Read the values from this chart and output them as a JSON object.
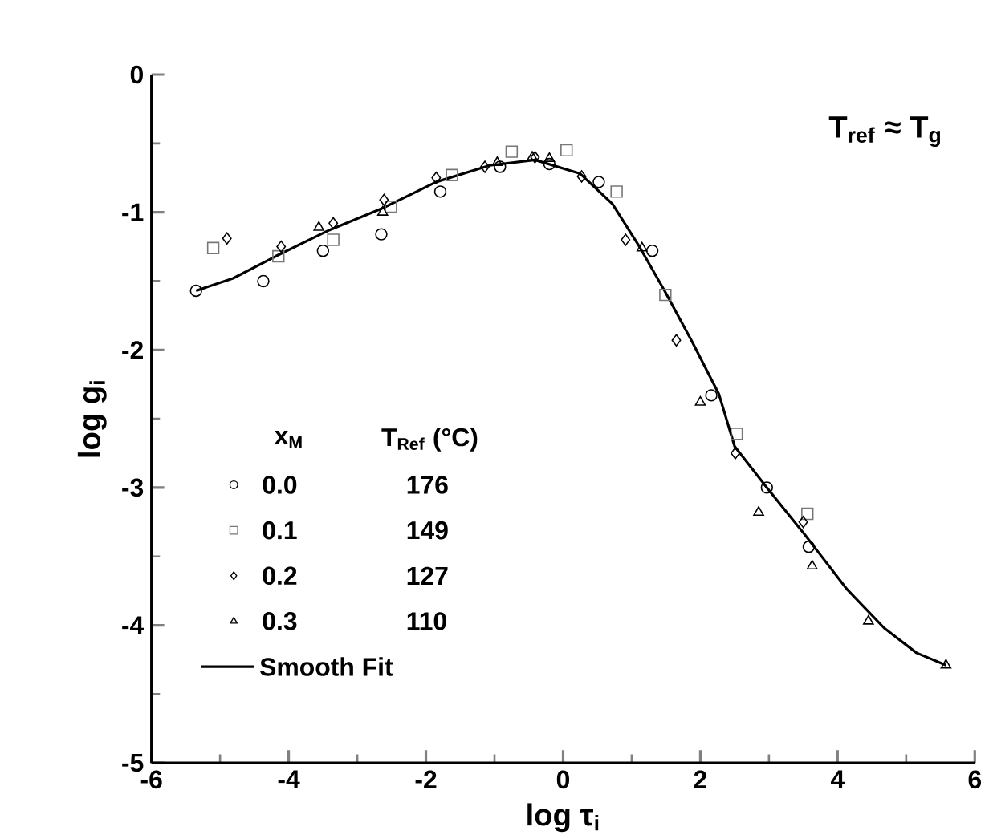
{
  "chart_data": {
    "type": "scatter",
    "xlabel": "log τ$_{i}$",
    "ylabel": "log g$_{i}$",
    "xlim": [
      -6,
      6
    ],
    "ylim": [
      -5,
      0
    ],
    "xticks": [
      -6,
      -4,
      -2,
      0,
      2,
      4,
      6
    ],
    "yticks": [
      -5,
      -4,
      -3,
      -2,
      -1,
      0
    ],
    "legend": "bottom left",
    "legend_title": "x$_{M}$",
    "annotations": [
      "T$_{ref}$ ≈ T$_{g}$",
      "T$_{Ref}$ (°C)",
      "176",
      "149",
      "127",
      "110"
    ],
    "series": [
      {
        "name": "0.0",
        "color": "#000000",
        "marker": "circle",
        "x": [
          -5.35,
          -4.37,
          -3.5,
          -2.65,
          -1.79,
          -0.92,
          -0.2,
          0.52,
          1.3,
          2.16,
          2.97,
          3.58
        ],
        "values": [
          -1.57,
          -1.5,
          -1.28,
          -1.16,
          -0.85,
          -0.67,
          -0.65,
          -0.78,
          -1.28,
          -2.33,
          -3.0,
          -3.43
        ]
      },
      {
        "name": "0.1",
        "color": "#777777",
        "marker": "square",
        "x": [
          -5.1,
          -4.15,
          -3.35,
          -2.51,
          -1.62,
          -0.75,
          0.05,
          0.78,
          1.49,
          2.53,
          3.56
        ],
        "values": [
          -1.26,
          -1.32,
          -1.2,
          -0.96,
          -0.73,
          -0.56,
          -0.55,
          -0.85,
          -1.6,
          -2.61,
          -3.19
        ]
      },
      {
        "name": "0.2",
        "color": "#000000",
        "marker": "diamond",
        "x": [
          -4.9,
          -4.11,
          -3.35,
          -2.61,
          -1.85,
          -1.14,
          -0.41,
          0.27,
          0.91,
          1.65,
          2.51,
          3.5
        ],
        "values": [
          -1.19,
          -1.25,
          -1.08,
          -0.91,
          -0.75,
          -0.67,
          -0.6,
          -0.74,
          -1.2,
          -1.93,
          -2.75,
          -3.25
        ]
      },
      {
        "name": "0.3",
        "color": "#000000",
        "marker": "triangle",
        "x": [
          -3.56,
          -2.63,
          -0.96,
          -0.45,
          -0.2,
          1.15,
          2.0,
          2.85,
          3.63,
          4.45,
          5.58
        ],
        "values": [
          -1.11,
          -1.0,
          -0.64,
          -0.6,
          -0.61,
          -1.26,
          -2.38,
          -3.18,
          -3.57,
          -3.97,
          -4.29
        ]
      },
      {
        "name": "Smooth Fit",
        "type": "line",
        "color": "#000000",
        "line_style": "solid",
        "x": [
          -5.35,
          -4.81,
          -4.19,
          -3.41,
          -2.63,
          -1.85,
          -1.07,
          -0.41,
          0.25,
          0.72,
          1.1,
          1.49,
          1.88,
          2.27,
          2.5,
          2.97,
          3.52,
          4.14,
          4.68,
          5.15,
          5.58
        ],
        "values": [
          -1.57,
          -1.48,
          -1.32,
          -1.13,
          -0.97,
          -0.78,
          -0.66,
          -0.62,
          -0.72,
          -0.94,
          -1.24,
          -1.58,
          -1.94,
          -2.32,
          -2.7,
          -3.0,
          -3.34,
          -3.74,
          -4.02,
          -4.2,
          -4.29
        ]
      }
    ]
  }
}
